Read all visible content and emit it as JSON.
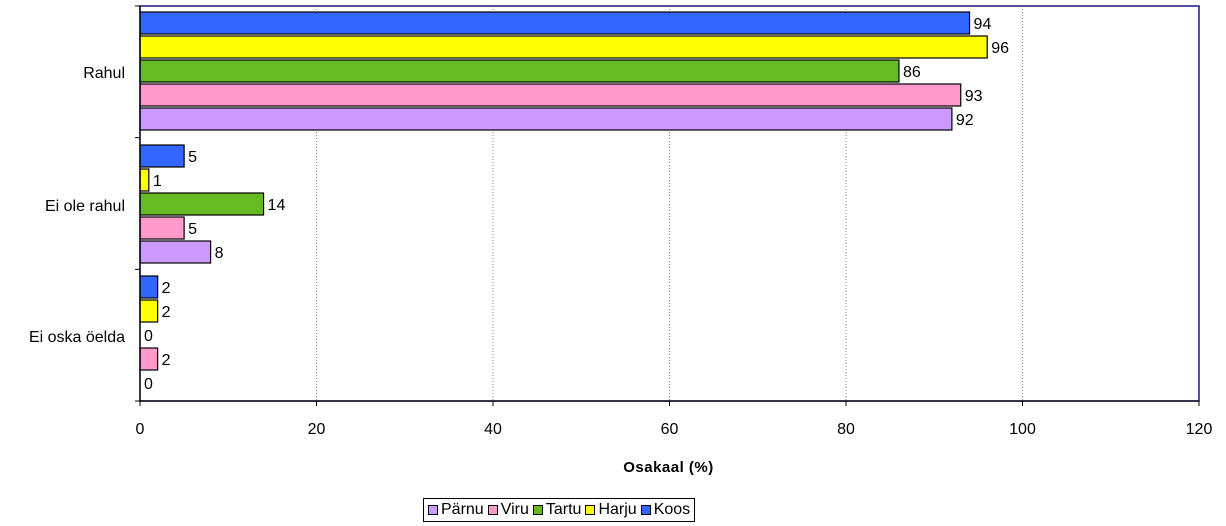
{
  "chart_data": {
    "type": "bar",
    "orientation": "horizontal",
    "categories": [
      "Rahul",
      "Ei ole rahul",
      "Ei oska öelda"
    ],
    "series": [
      {
        "name": "Koos",
        "color": "#3366ff",
        "values": [
          94,
          5,
          2
        ]
      },
      {
        "name": "Harju",
        "color": "#ffff00",
        "values": [
          96,
          1,
          2
        ]
      },
      {
        "name": "Tartu",
        "color": "#66bb22",
        "values": [
          86,
          14,
          0
        ]
      },
      {
        "name": "Viru",
        "color": "#ff99cc",
        "values": [
          93,
          5,
          2
        ]
      },
      {
        "name": "Pärnu",
        "color": "#cc99ff",
        "values": [
          92,
          8,
          0
        ]
      }
    ],
    "legend_order": [
      "Pärnu",
      "Viru",
      "Tartu",
      "Harju",
      "Koos"
    ],
    "xlabel": "Osakaal (%)",
    "xlim": [
      0,
      120
    ],
    "xticks": [
      0,
      20,
      40,
      60,
      80,
      100,
      120
    ],
    "grid": "vertical dotted",
    "legend_position": "bottom"
  }
}
